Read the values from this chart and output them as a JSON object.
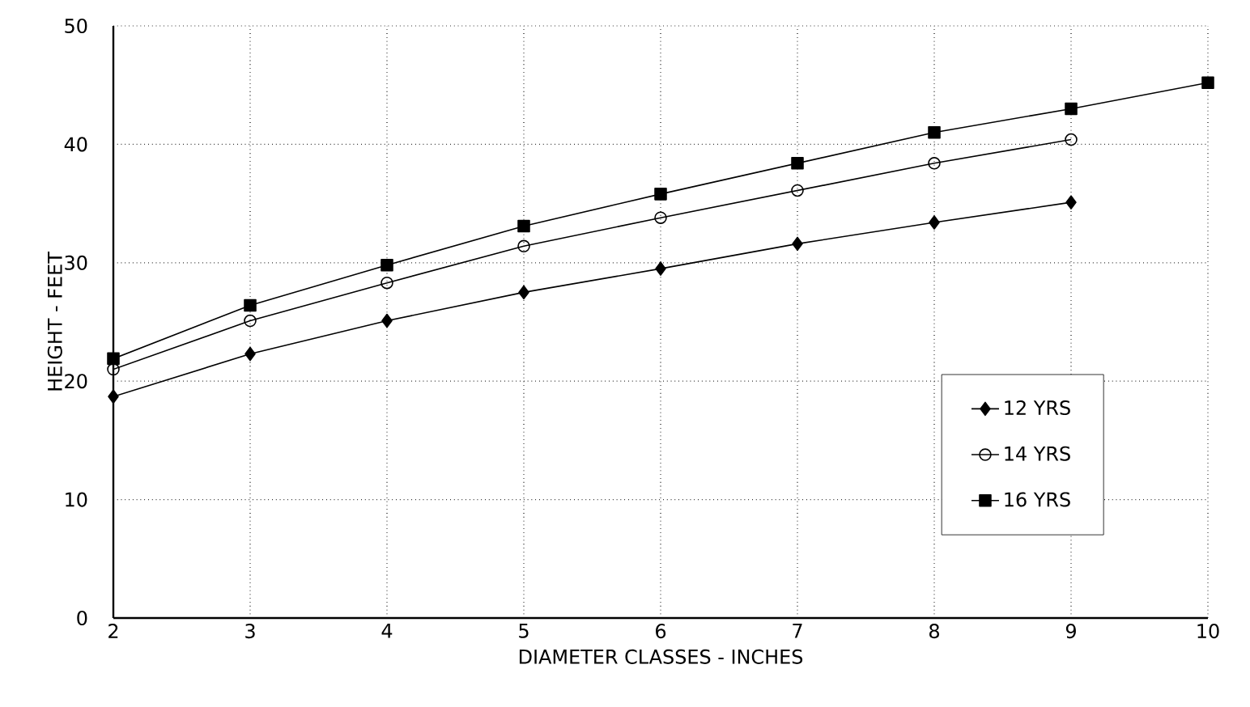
{
  "chart_data": {
    "type": "line",
    "xlabel": "DIAMETER CLASSES - INCHES",
    "ylabel": "HEIGHT - FEET",
    "x": [
      2,
      3,
      4,
      5,
      6,
      7,
      8,
      9,
      10
    ],
    "series": [
      {
        "name": "12 YRS",
        "color": "#000000",
        "marker": "diamond",
        "values": [
          18.7,
          22.3,
          25.1,
          27.5,
          29.5,
          31.6,
          33.4,
          35.1,
          null
        ]
      },
      {
        "name": "14 YRS",
        "color": "#000000",
        "marker": "circle",
        "values": [
          21.0,
          25.1,
          28.3,
          31.4,
          33.8,
          36.1,
          38.4,
          40.4,
          null
        ]
      },
      {
        "name": "16 YRS",
        "color": "#000000",
        "marker": "square",
        "values": [
          21.9,
          26.4,
          29.8,
          33.1,
          35.8,
          38.4,
          41.0,
          43.0,
          45.2
        ]
      }
    ],
    "xlim": [
      2,
      10
    ],
    "ylim": [
      0,
      50
    ],
    "xticks": [
      2,
      3,
      4,
      5,
      6,
      7,
      8,
      9,
      10
    ],
    "yticks": [
      0,
      10,
      20,
      30,
      40,
      50
    ],
    "grid": true,
    "legend": "bottom right",
    "line_style": "solid"
  }
}
